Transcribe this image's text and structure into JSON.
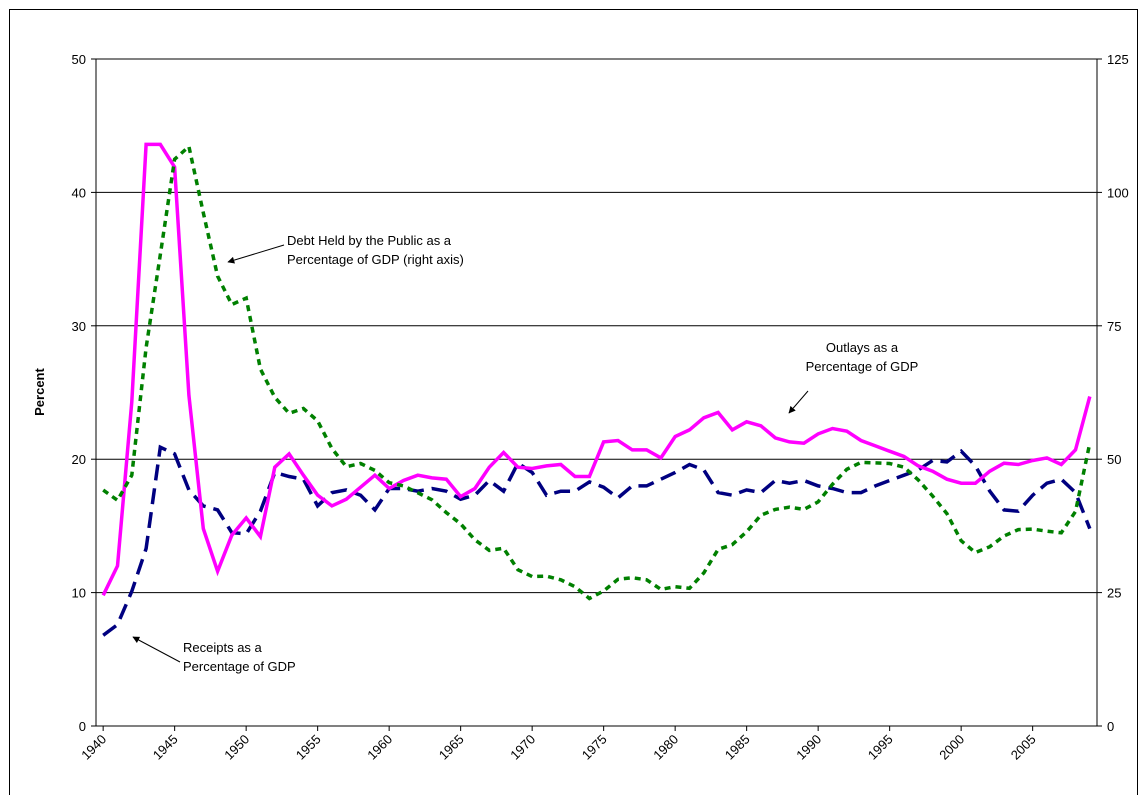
{
  "chart_data": {
    "type": "line",
    "y_label": "Percent",
    "x": [
      1940,
      1941,
      1942,
      1943,
      1944,
      1945,
      1946,
      1947,
      1948,
      1949,
      1950,
      1951,
      1952,
      1953,
      1954,
      1955,
      1956,
      1957,
      1958,
      1959,
      1960,
      1961,
      1962,
      1963,
      1964,
      1965,
      1966,
      1967,
      1968,
      1969,
      1970,
      1971,
      1972,
      1973,
      1974,
      1975,
      1976,
      1977,
      1978,
      1979,
      1980,
      1981,
      1982,
      1983,
      1984,
      1985,
      1986,
      1987,
      1988,
      1989,
      1990,
      1991,
      1992,
      1993,
      1994,
      1995,
      1996,
      1997,
      1998,
      1999,
      2000,
      2001,
      2002,
      2003,
      2004,
      2005,
      2006,
      2007,
      2008,
      2009
    ],
    "xlim": [
      1939.5,
      2009.5
    ],
    "xticks": [
      1940,
      1945,
      1950,
      1955,
      1960,
      1965,
      1970,
      1975,
      1980,
      1985,
      1990,
      1995,
      2000,
      2005
    ],
    "ylim": [
      0,
      50
    ],
    "yticks": [
      0,
      10,
      20,
      30,
      40,
      50
    ],
    "y2lim": [
      0,
      125
    ],
    "y2ticks": [
      0,
      25,
      50,
      75,
      100,
      125
    ],
    "grid": true,
    "series": [
      {
        "color": "#000080",
        "style": "dashed",
        "values": [
          6.8,
          7.6,
          10.1,
          13.3,
          20.9,
          20.4,
          17.7,
          16.5,
          16.2,
          14.5,
          14.4,
          16.1,
          19.0,
          18.7,
          18.5,
          16.5,
          17.5,
          17.7,
          17.3,
          16.2,
          17.8,
          17.8,
          17.6,
          17.8,
          17.6,
          17.0,
          17.3,
          18.4,
          17.6,
          19.7,
          19.0,
          17.3,
          17.6,
          17.6,
          18.3,
          17.9,
          17.1,
          18.0,
          18.0,
          18.5,
          19.0,
          19.6,
          19.2,
          17.5,
          17.3,
          17.7,
          17.5,
          18.4,
          18.2,
          18.4,
          18.0,
          17.8,
          17.5,
          17.5,
          18.0,
          18.4,
          18.8,
          19.2,
          19.9,
          19.8,
          20.6,
          19.5,
          17.6,
          16.2,
          16.1,
          17.3,
          18.2,
          18.5,
          17.5,
          14.8
        ]
      },
      {
        "color": "#ff00ff",
        "style": "solid",
        "values": [
          9.8,
          12.0,
          24.3,
          43.6,
          43.6,
          41.9,
          24.8,
          14.8,
          11.6,
          14.3,
          15.6,
          14.2,
          19.4,
          20.4,
          18.8,
          17.3,
          16.5,
          17.0,
          17.9,
          18.8,
          17.8,
          18.4,
          18.8,
          18.6,
          18.5,
          17.2,
          17.8,
          19.4,
          20.5,
          19.4,
          19.3,
          19.5,
          19.6,
          18.7,
          18.7,
          21.3,
          21.4,
          20.7,
          20.7,
          20.1,
          21.7,
          22.2,
          23.1,
          23.5,
          22.2,
          22.8,
          22.5,
          21.6,
          21.3,
          21.2,
          21.9,
          22.3,
          22.1,
          21.4,
          21.0,
          20.6,
          20.2,
          19.5,
          19.1,
          18.5,
          18.2,
          18.2,
          19.1,
          19.7,
          19.6,
          19.9,
          20.1,
          19.6,
          20.7,
          24.7
        ]
      },
      {
        "color": "#008000",
        "style": "dotted",
        "axis": "y2",
        "values": [
          44.2,
          42.3,
          47.0,
          70.9,
          88.3,
          106.2,
          108.6,
          96.2,
          84.3,
          79.0,
          80.2,
          66.9,
          61.6,
          58.6,
          59.5,
          57.2,
          52.0,
          48.6,
          49.2,
          47.9,
          45.6,
          45.0,
          43.7,
          42.4,
          40.0,
          37.9,
          34.9,
          32.9,
          33.3,
          29.3,
          28.0,
          28.1,
          27.4,
          26.1,
          23.9,
          25.3,
          27.5,
          27.8,
          27.4,
          25.6,
          26.1,
          25.8,
          28.7,
          33.1,
          34.0,
          36.4,
          39.5,
          40.6,
          41.0,
          40.6,
          42.0,
          45.3,
          48.1,
          49.4,
          49.3,
          49.2,
          48.5,
          46.1,
          43.1,
          39.8,
          34.7,
          32.5,
          33.6,
          35.6,
          36.8,
          36.9,
          36.5,
          36.2,
          40.2,
          53.0
        ]
      }
    ],
    "annotations": [
      {
        "lines": [
          "Debt Held by the Public as a",
          "Percentage of GDP (right axis)"
        ]
      },
      {
        "lines": [
          "Outlays as a",
          "Percentage of GDP"
        ]
      },
      {
        "lines": [
          "Receipts as a",
          "Percentage of GDP"
        ]
      }
    ]
  }
}
